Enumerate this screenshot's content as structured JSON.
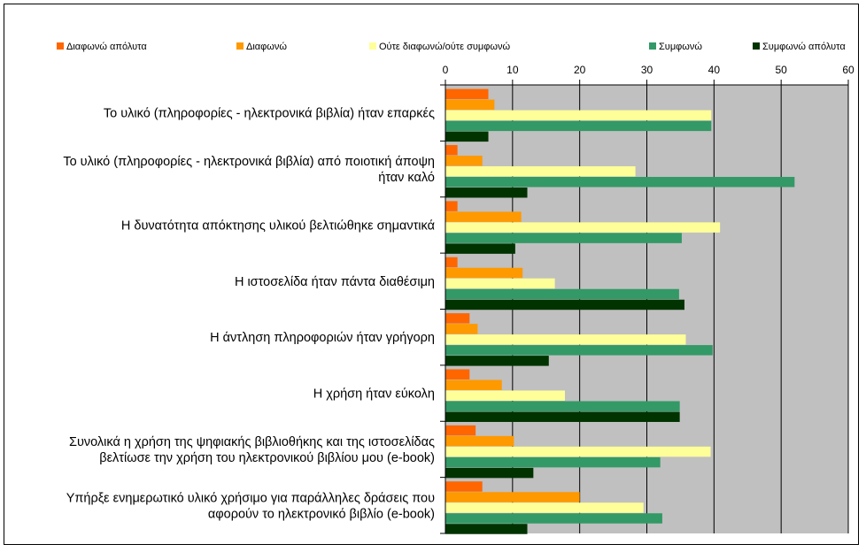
{
  "chart_data": {
    "type": "bar",
    "orientation": "horizontal",
    "title": "",
    "xlabel": "",
    "ylabel": "",
    "xlim": [
      0,
      60
    ],
    "x_ticks": [
      "0",
      "10",
      "20",
      "30",
      "40",
      "50",
      "60"
    ],
    "x_axis_position": "top",
    "grid": true,
    "legend_position": "top",
    "plot_background": "#c0c0c0",
    "categories": [
      [
        "Το υλικό (πληροφορίες - ηλεκτρονικά βιβλία) ήταν επαρκές"
      ],
      [
        "Το υλικό (πληροφορίες - ηλεκτρονικά βιβλία) από ποιοτική άποψη",
        "ήταν καλό"
      ],
      [
        "Η δυνατότητα απόκτησης υλικού βελτιώθηκε σημαντικά"
      ],
      [
        "Η ιστοσελίδα ήταν πάντα διαθέσιμη"
      ],
      [
        "Η άντληση πληροφοριών ήταν γρήγορη"
      ],
      [
        "Η χρήση ήταν εύκολη"
      ],
      [
        "Συνολικά η χρήση της ψηφιακής βιβλιοθήκης και της ιστοσελίδας",
        "βελτίωσε την χρήση του ηλεκτρονικού βιβλίου μου (e-book)"
      ],
      [
        "Υπήρξε ενημερωτικό υλικό χρήσιμο για παράλληλες δράσεις που",
        "αφορούν το ηλεκτρονικό βιβλίο (e-book)"
      ]
    ],
    "series": [
      {
        "name": "Διαφωνώ απόλυτα",
        "color": "#ff6600",
        "values": [
          6.4,
          1.8,
          1.8,
          1.8,
          3.6,
          3.6,
          4.5,
          5.5
        ]
      },
      {
        "name": "Διαφωνώ",
        "color": "#ff9900",
        "values": [
          7.3,
          5.5,
          11.3,
          11.5,
          4.8,
          8.4,
          10.2,
          20.0
        ]
      },
      {
        "name": "Ούτε διαφωνώ/ούτε συμφωνώ",
        "color": "#ffff99",
        "values": [
          39.6,
          28.3,
          40.9,
          16.3,
          35.8,
          17.8,
          39.5,
          29.5
        ]
      },
      {
        "name": "Συμφωνώ",
        "color": "#339966",
        "values": [
          39.6,
          52.0,
          35.2,
          34.8,
          39.8,
          34.9,
          32.0,
          32.3
        ]
      },
      {
        "name": "Συμφωνώ απόλυτα",
        "color": "#003300",
        "values": [
          6.4,
          12.2,
          10.4,
          35.6,
          15.4,
          34.9,
          13.1,
          12.2
        ]
      }
    ]
  }
}
